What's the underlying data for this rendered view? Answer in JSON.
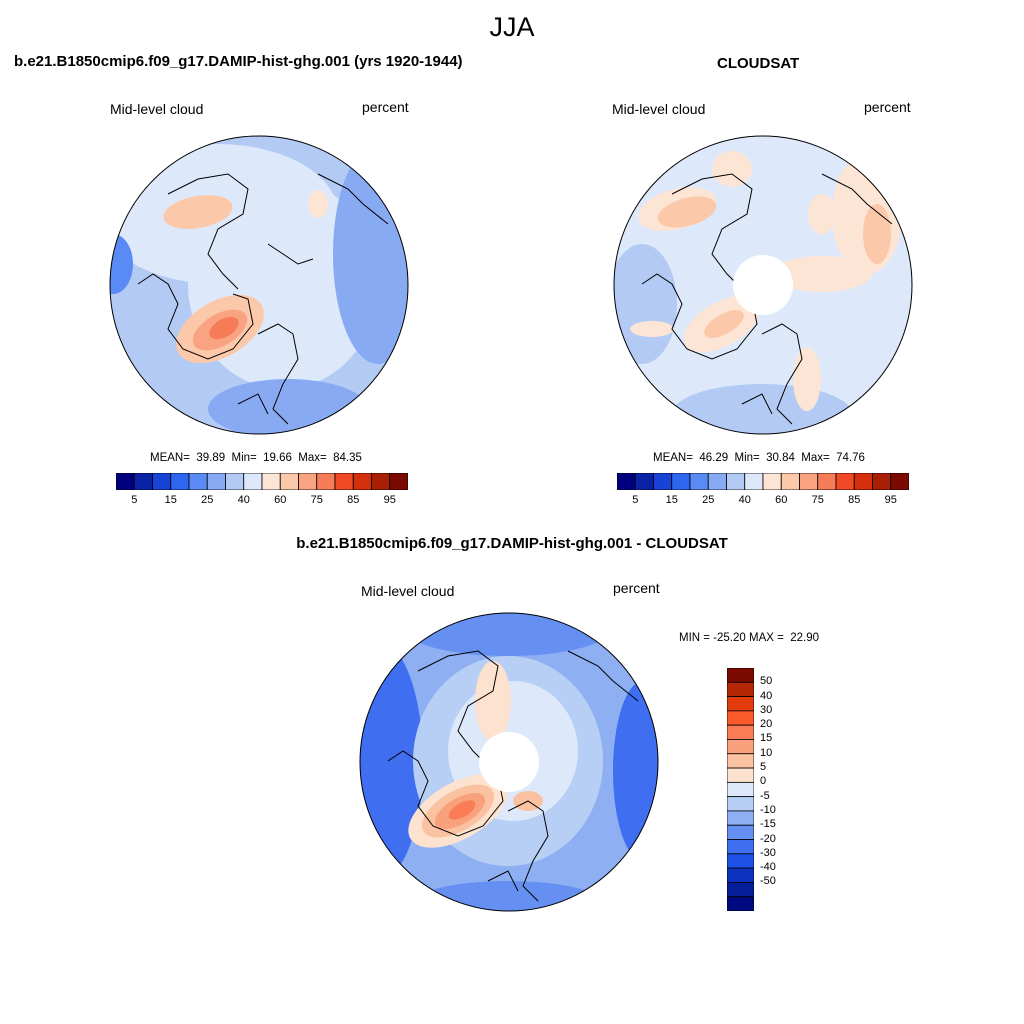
{
  "figure": {
    "title": "JJA"
  },
  "panels": [
    {
      "title": "b.e21.B1850cmip6.f09_g17.DAMIP-hist-ghg.001 (yrs 1920-1944)",
      "left_label": "Mid-level cloud",
      "right_label": "percent",
      "stats": "MEAN=  39.89  Min=  19.66  Max=  84.35"
    },
    {
      "title": "CLOUDSAT",
      "left_label": "Mid-level cloud",
      "right_label": "percent",
      "stats": "MEAN=  46.29  Min=  30.84  Max=  74.76"
    },
    {
      "title": "b.e21.B1850cmip6.f09_g17.DAMIP-hist-ghg.001 - CLOUDSAT",
      "left_label": "Mid-level cloud",
      "right_label": "percent",
      "stats": "MIN = -25.20 MAX =  22.90"
    }
  ],
  "colorbar_abs": {
    "colors": [
      "#00007f",
      "#0a23a6",
      "#1744d6",
      "#2f66f0",
      "#5a8af4",
      "#87aaf2",
      "#b3cbf4",
      "#dde9fa",
      "#fde5d6",
      "#fbc8aa",
      "#f9a382",
      "#f67c58",
      "#ef4a25",
      "#d5300d",
      "#a81f06",
      "#7b0a00"
    ],
    "labels": [
      "5",
      "15",
      "25",
      "40",
      "60",
      "75",
      "85",
      "95"
    ]
  },
  "colorbar_diff": {
    "colors": [
      "#7b0a00",
      "#b52805",
      "#e23c0d",
      "#fc5a2a",
      "#fa7d55",
      "#f9a07c",
      "#fbc2a2",
      "#fde3cf",
      "#dde9fa",
      "#b7cef5",
      "#8eb0f3",
      "#6590f2",
      "#3f6ff0",
      "#1f50e6",
      "#0d33be",
      "#061f99",
      "#000a80"
    ],
    "labels": [
      "50",
      "40",
      "30",
      "20",
      "15",
      "10",
      "5",
      "0",
      "-5",
      "-10",
      "-15",
      "-20",
      "-30",
      "-40",
      "-50"
    ]
  },
  "chart_data": [
    {
      "type": "heatmap",
      "projection": "north-polar-stereographic",
      "title": "b.e21.B1850cmip6.f09_g17.DAMIP-hist-ghg.001 (yrs 1920-1944)",
      "variable": "Mid-level cloud",
      "units": "percent",
      "mean": 39.89,
      "min": 19.66,
      "max": 84.35,
      "contour_levels": [
        5,
        15,
        25,
        40,
        60,
        75,
        85,
        95
      ]
    },
    {
      "type": "heatmap",
      "projection": "north-polar-stereographic",
      "title": "CLOUDSAT",
      "variable": "Mid-level cloud",
      "units": "percent",
      "mean": 46.29,
      "min": 30.84,
      "max": 74.76,
      "contour_levels": [
        5,
        15,
        25,
        40,
        60,
        75,
        85,
        95
      ]
    },
    {
      "type": "heatmap",
      "projection": "north-polar-stereographic",
      "title": "b.e21.B1850cmip6.f09_g17.DAMIP-hist-ghg.001 - CLOUDSAT",
      "variable": "Mid-level cloud",
      "units": "percent",
      "min": -25.2,
      "max": 22.9,
      "contour_levels": [
        -50,
        -40,
        -30,
        -20,
        -15,
        -10,
        -5,
        0,
        5,
        10,
        15,
        20,
        30,
        40,
        50
      ]
    }
  ]
}
